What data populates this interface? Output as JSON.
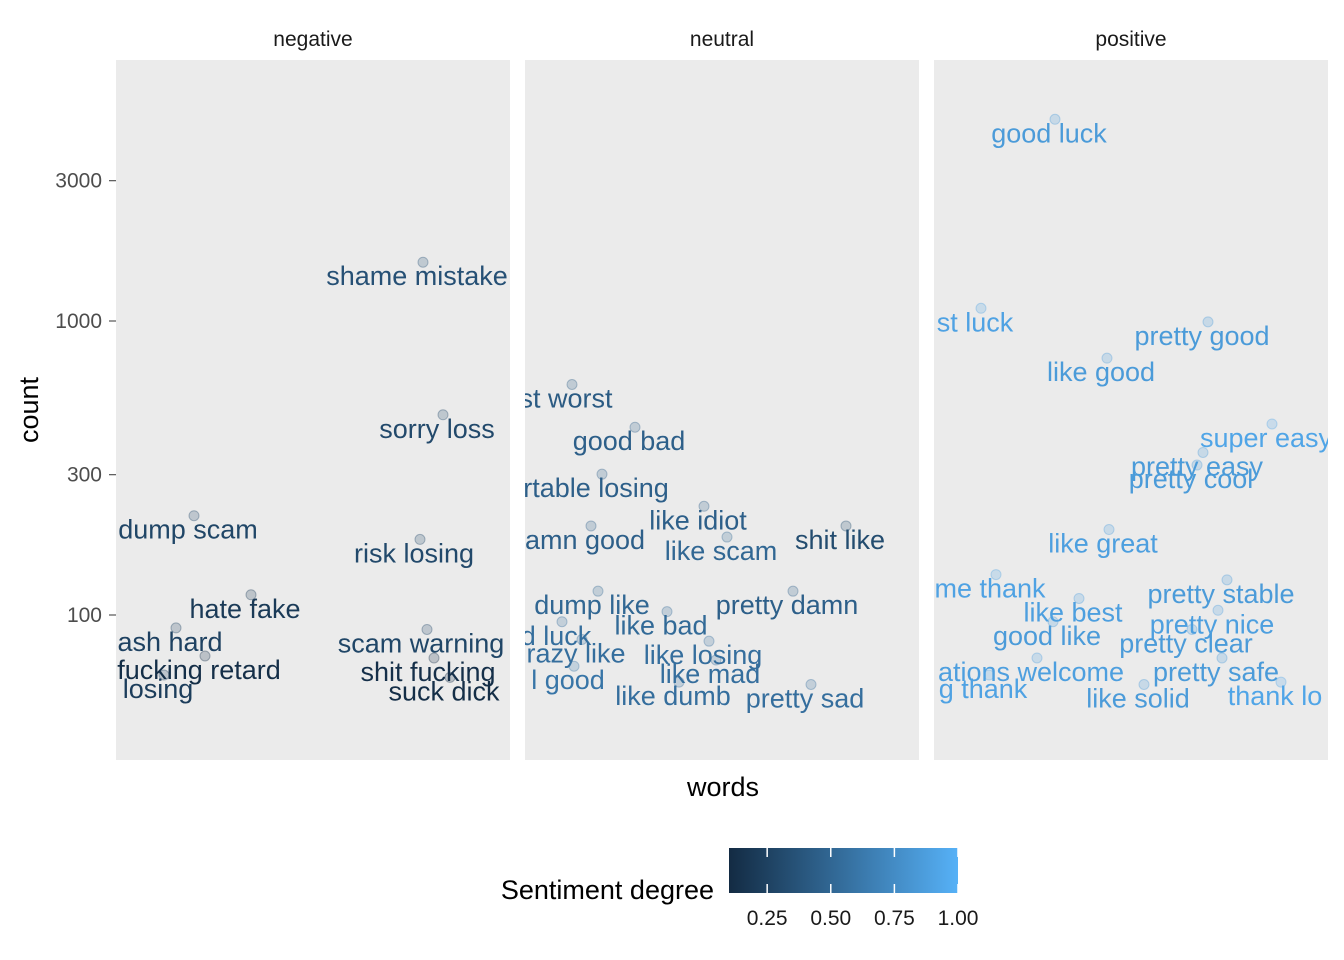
{
  "chart_data": {
    "type": "scatter",
    "facet_by": "sentiment",
    "panels": [
      "negative",
      "neutral",
      "positive"
    ],
    "xlabel": "words",
    "ylabel": "count",
    "y_scale": "log10",
    "y_ticks": [
      100,
      300,
      1000,
      3000
    ],
    "ylim": [
      40,
      5500
    ],
    "x_axis": "random horizontal jitter within each panel (no x ticks)",
    "legend": {
      "title": "Sentiment degree",
      "position": "bottom",
      "ticks": [
        "0.25",
        "0.50",
        "0.75",
        "1.00"
      ],
      "range": [
        0.1,
        1.0
      ],
      "color_low": "#132B43",
      "color_high": "#56B1F7"
    },
    "background": "#EBEBEB",
    "grid": false,
    "points": [
      {
        "panel": "negative",
        "word": "shame mistake",
        "count": 1420,
        "degree": 0.35
      },
      {
        "panel": "negative",
        "word": "sorry loss",
        "count": 430,
        "degree": 0.3
      },
      {
        "panel": "negative",
        "word": "dump scam",
        "count": 195,
        "degree": 0.28
      },
      {
        "panel": "negative",
        "word": "risk losing",
        "count": 162,
        "degree": 0.3
      },
      {
        "panel": "negative",
        "word": "hate fake",
        "count": 105,
        "degree": 0.2
      },
      {
        "panel": "negative",
        "word": "ash hard",
        "count": 81,
        "degree": 0.25
      },
      {
        "panel": "negative",
        "word": "scam warning",
        "count": 80,
        "degree": 0.28
      },
      {
        "panel": "negative",
        "word": "fucking retard",
        "count": 65,
        "degree": 0.12
      },
      {
        "panel": "negative",
        "word": "shit fucking",
        "count": 64,
        "degree": 0.13
      },
      {
        "panel": "negative",
        "word": "losing",
        "count": 56,
        "degree": 0.22
      },
      {
        "panel": "negative",
        "word": "suck dick",
        "count": 55,
        "degree": 0.12
      },
      {
        "panel": "neutral",
        "word": "st worst",
        "count": 545,
        "degree": 0.42
      },
      {
        "panel": "neutral",
        "word": "good bad",
        "count": 390,
        "degree": 0.45
      },
      {
        "panel": "neutral",
        "word": "rtable losing",
        "count": 270,
        "degree": 0.45
      },
      {
        "panel": "neutral",
        "word": "like idiot",
        "count": 210,
        "degree": 0.45
      },
      {
        "panel": "neutral",
        "word": "amn good",
        "count": 180,
        "degree": 0.45
      },
      {
        "panel": "neutral",
        "word": "shit like",
        "count": 180,
        "degree": 0.32
      },
      {
        "panel": "neutral",
        "word": "like scam",
        "count": 165,
        "degree": 0.5
      },
      {
        "panel": "neutral",
        "word": "dump like",
        "count": 108,
        "degree": 0.5
      },
      {
        "panel": "neutral",
        "word": "pretty damn",
        "count": 108,
        "degree": 0.45
      },
      {
        "panel": "neutral",
        "word": "like bad",
        "count": 92,
        "degree": 0.52
      },
      {
        "panel": "neutral",
        "word": "d luck",
        "count": 85,
        "degree": 0.55
      },
      {
        "panel": "neutral",
        "word": "razy like",
        "count": 74,
        "degree": 0.55
      },
      {
        "panel": "neutral",
        "word": "like losing",
        "count": 73,
        "degree": 0.55
      },
      {
        "panel": "neutral",
        "word": "like mad",
        "count": 63,
        "degree": 0.55
      },
      {
        "panel": "neutral",
        "word": "l good",
        "count": 60,
        "degree": 0.6
      },
      {
        "panel": "neutral",
        "word": "like dumb",
        "count": 53,
        "degree": 0.55
      },
      {
        "panel": "neutral",
        "word": "pretty sad",
        "count": 52,
        "degree": 0.55
      },
      {
        "panel": "positive",
        "word": "good luck",
        "count": 4350,
        "degree": 0.85
      },
      {
        "panel": "positive",
        "word": "st luck",
        "count": 990,
        "degree": 0.9
      },
      {
        "panel": "positive",
        "word": "pretty good",
        "count": 890,
        "degree": 0.85
      },
      {
        "panel": "positive",
        "word": "like good",
        "count": 670,
        "degree": 0.85
      },
      {
        "panel": "positive",
        "word": "super easy",
        "count": 400,
        "degree": 0.92
      },
      {
        "panel": "positive",
        "word": "pretty easy",
        "count": 320,
        "degree": 0.85
      },
      {
        "panel": "positive",
        "word": "pretty cool",
        "count": 290,
        "degree": 0.85
      },
      {
        "panel": "positive",
        "word": "like great",
        "count": 175,
        "degree": 0.88
      },
      {
        "panel": "positive",
        "word": "me thank",
        "count": 123,
        "degree": 0.9
      },
      {
        "panel": "positive",
        "word": "pretty stable",
        "count": 118,
        "degree": 0.85
      },
      {
        "panel": "positive",
        "word": "like best",
        "count": 102,
        "degree": 0.88
      },
      {
        "panel": "positive",
        "word": "pretty nice",
        "count": 93,
        "degree": 0.88
      },
      {
        "panel": "positive",
        "word": "good like",
        "count": 85,
        "degree": 0.85
      },
      {
        "panel": "positive",
        "word": "pretty clear",
        "count": 80,
        "degree": 0.85
      },
      {
        "panel": "positive",
        "word": "ations welcome",
        "count": 64,
        "degree": 0.88
      },
      {
        "panel": "positive",
        "word": "pretty safe",
        "count": 64,
        "degree": 0.85
      },
      {
        "panel": "positive",
        "word": "g thank",
        "count": 56,
        "degree": 0.9
      },
      {
        "panel": "positive",
        "word": "thank lo",
        "count": 53,
        "degree": 0.92
      },
      {
        "panel": "positive",
        "word": "like solid",
        "count": 52,
        "degree": 0.85
      }
    ]
  }
}
